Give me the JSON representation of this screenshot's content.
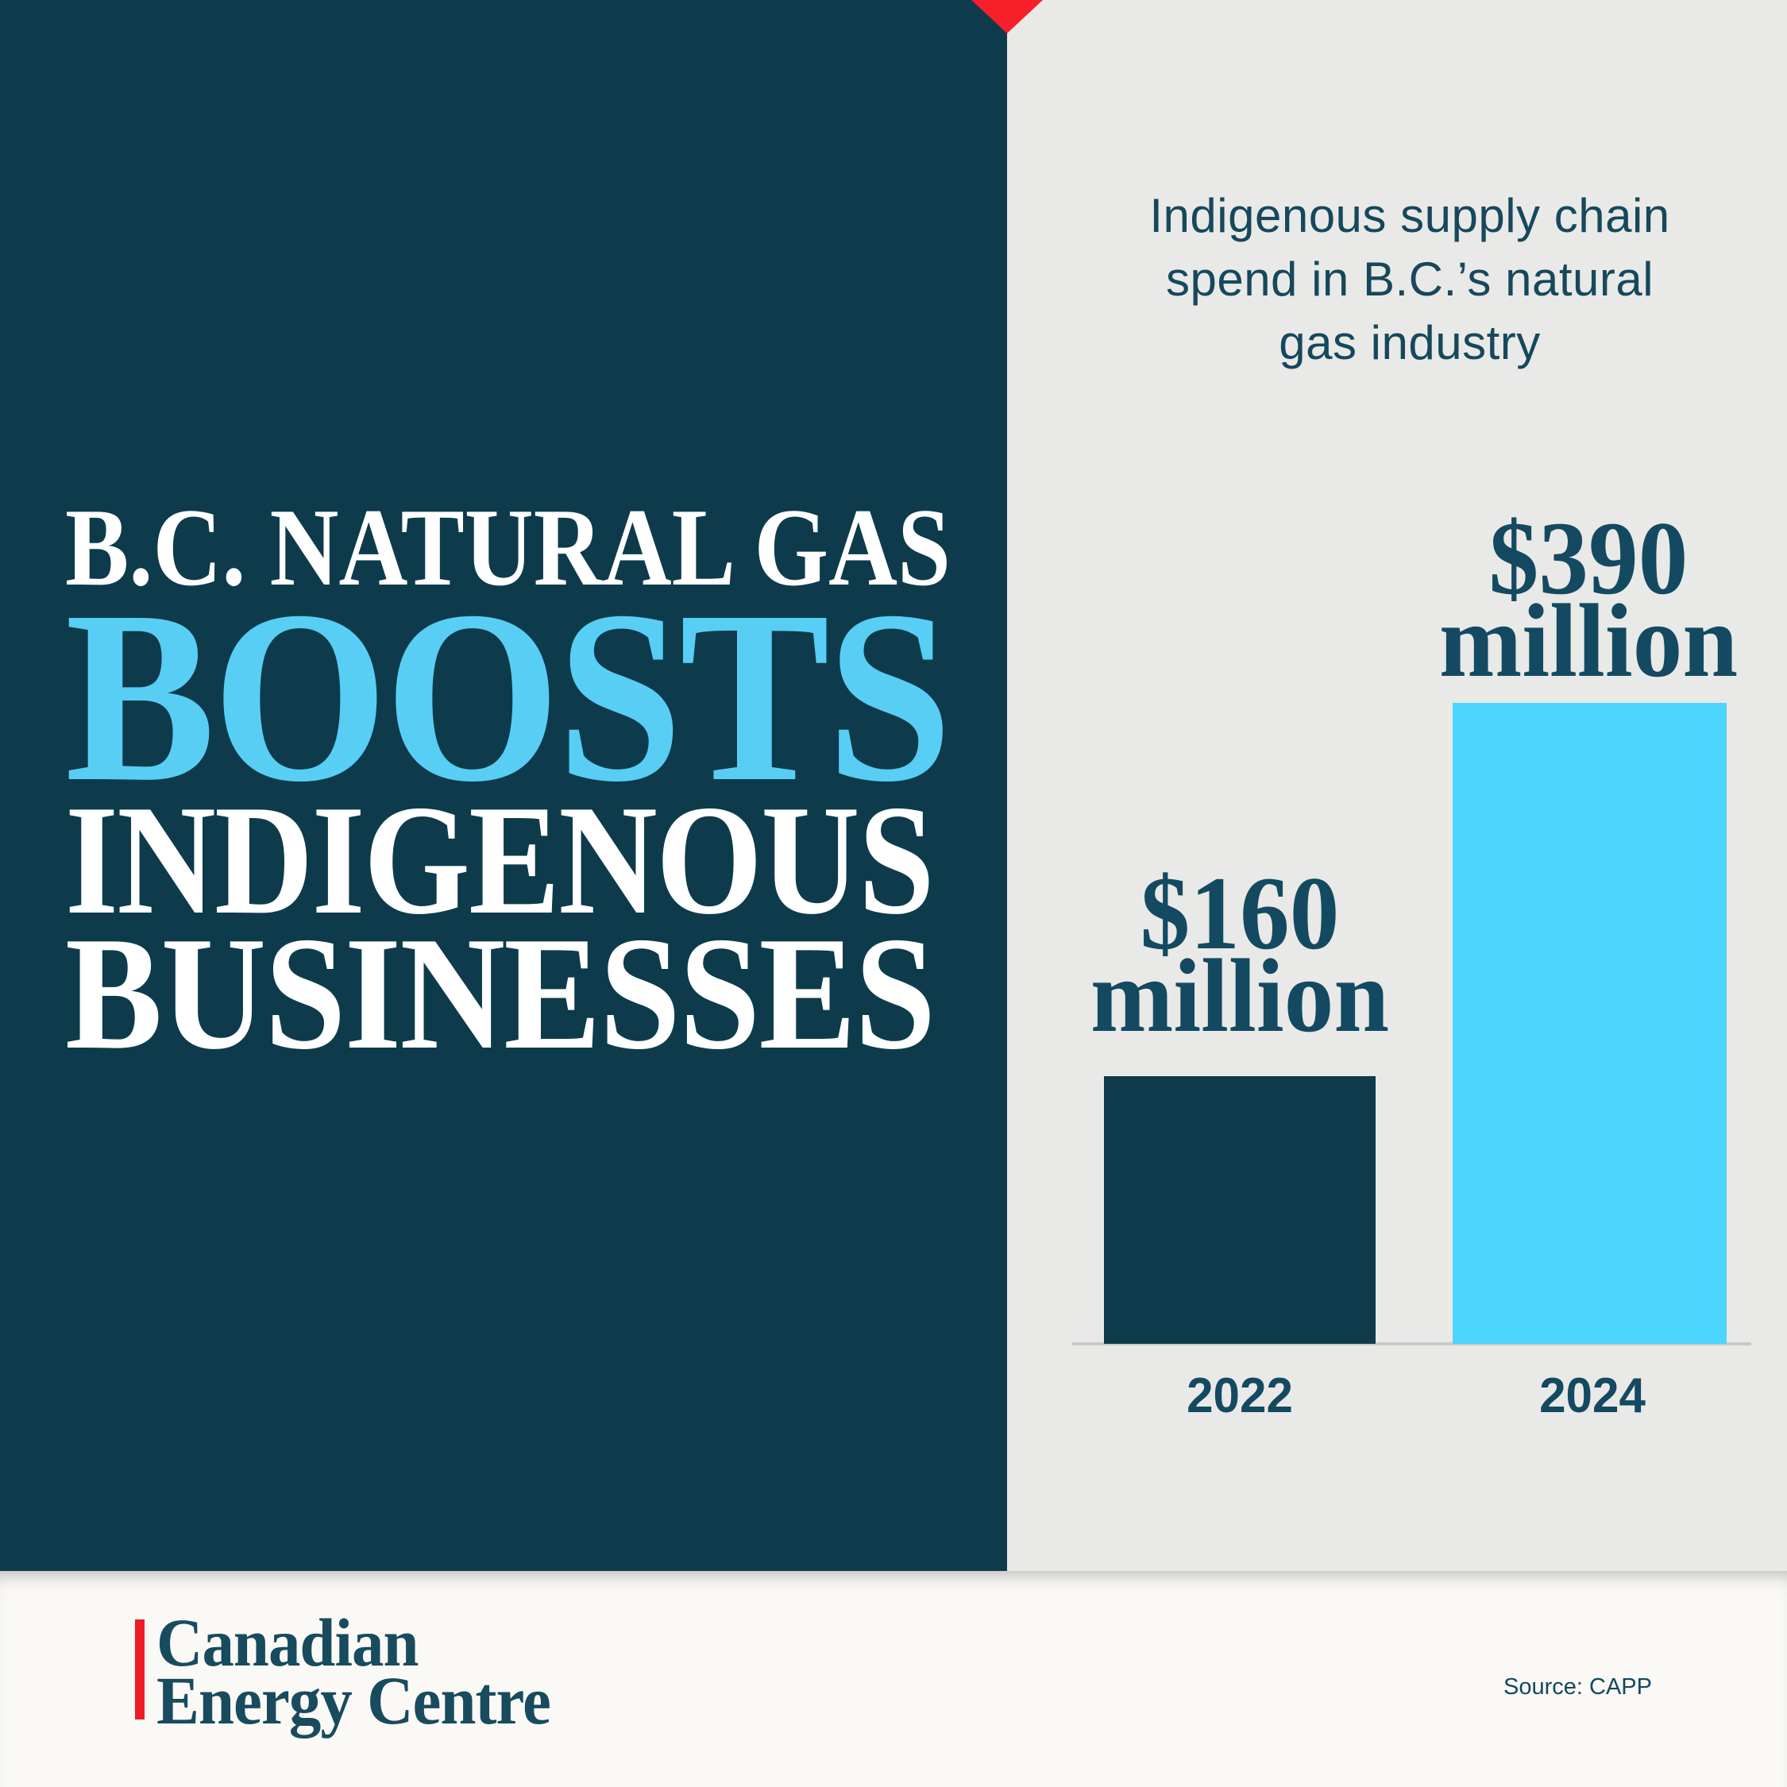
{
  "poster": {
    "headline": {
      "line1": "B.C. NATURAL GAS",
      "line2": "BOOSTS",
      "line3": "INDIGENOUS",
      "line4": "BUSINESSES"
    },
    "colors": {
      "dark_teal": "#0e3b4c",
      "headline_blue": "#58cef5",
      "bar_cyan": "#4cd5fe",
      "panel_gray": "#e9e9e7",
      "paper_white": "#faf9f6",
      "accent_red": "#f7202a",
      "logo_red": "#ee1c25",
      "text_dark": "#134a61"
    }
  },
  "chart": {
    "title_lines": [
      "Indigenous supply chain",
      "spend in B.C.’s natural",
      "gas industry"
    ],
    "bars": [
      {
        "year": "2022",
        "label_line1": "$160",
        "label_line2": "million",
        "value": 160
      },
      {
        "year": "2024",
        "label_line1": "$390",
        "label_line2": "million",
        "value": 390
      }
    ]
  },
  "chart_data": {
    "type": "bar",
    "categories": [
      "2022",
      "2024"
    ],
    "values": [
      160,
      390
    ],
    "value_labels": [
      "$160 million",
      "$390 million"
    ],
    "unit": "$ million",
    "title": "Indigenous supply chain spend in B.C.’s natural gas industry",
    "xlabel": "",
    "ylabel": "",
    "ylim": [
      0,
      400
    ],
    "grid": false,
    "legend": false,
    "bar_colors": [
      "#0e3b4c",
      "#4cd5fe"
    ],
    "source": "Source: CAPP"
  },
  "footer": {
    "logo": {
      "line1": "Canadian",
      "line2": "Energy Centre"
    },
    "source": "Source: CAPP"
  }
}
